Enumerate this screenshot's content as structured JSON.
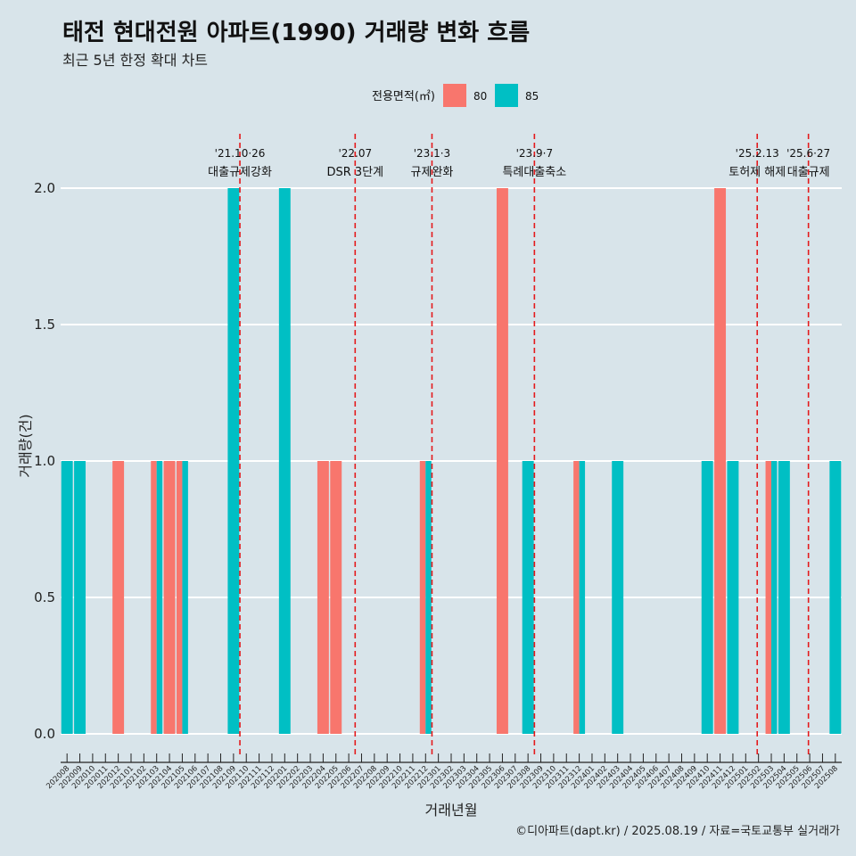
{
  "chart_data": {
    "type": "bar",
    "title": "태전 현대전원 아파트(1990) 거래량 변화 흐름",
    "subtitle": "최근 5년 한정 확대 차트",
    "xlabel": "거래년월",
    "ylabel": "거래량(건)",
    "ylim": [
      0,
      2.2
    ],
    "y_ticks": [
      "0.0",
      "0.5",
      "1.0",
      "1.5",
      "2.0"
    ],
    "grid": true,
    "legend": {
      "title": "전용면적(㎡)",
      "position": "top",
      "entries": [
        {
          "name": "80",
          "color": "#f8766d"
        },
        {
          "name": "85",
          "color": "#00bfc4"
        }
      ]
    },
    "categories": [
      "202008",
      "202009",
      "202010",
      "202011",
      "202012",
      "202101",
      "202102",
      "202103",
      "202104",
      "202105",
      "202106",
      "202107",
      "202108",
      "202109",
      "202110",
      "202111",
      "202112",
      "202201",
      "202202",
      "202203",
      "202204",
      "202205",
      "202206",
      "202207",
      "202208",
      "202209",
      "202210",
      "202211",
      "202212",
      "202301",
      "202302",
      "202303",
      "202304",
      "202305",
      "202306",
      "202307",
      "202308",
      "202309",
      "202310",
      "202311",
      "202312",
      "202401",
      "202402",
      "202403",
      "202404",
      "202405",
      "202406",
      "202407",
      "202408",
      "202409",
      "202410",
      "202411",
      "202412",
      "202501",
      "202502",
      "202503",
      "202504",
      "202505",
      "202506",
      "202507",
      "202508"
    ],
    "bars": [
      {
        "month": "202008",
        "area": "85",
        "value": 1,
        "pos": "full"
      },
      {
        "month": "202009",
        "area": "85",
        "value": 1,
        "pos": "full"
      },
      {
        "month": "202012",
        "area": "80",
        "value": 1,
        "pos": "full"
      },
      {
        "month": "202103",
        "area": "80",
        "value": 1,
        "pos": "left"
      },
      {
        "month": "202103",
        "area": "85",
        "value": 1,
        "pos": "right"
      },
      {
        "month": "202104",
        "area": "80",
        "value": 1,
        "pos": "full"
      },
      {
        "month": "202105",
        "area": "80",
        "value": 1,
        "pos": "left"
      },
      {
        "month": "202105",
        "area": "85",
        "value": 1,
        "pos": "right"
      },
      {
        "month": "202109",
        "area": "85",
        "value": 2,
        "pos": "full"
      },
      {
        "month": "202201",
        "area": "85",
        "value": 2,
        "pos": "full"
      },
      {
        "month": "202204",
        "area": "80",
        "value": 1,
        "pos": "full"
      },
      {
        "month": "202205",
        "area": "80",
        "value": 1,
        "pos": "full"
      },
      {
        "month": "202212",
        "area": "80",
        "value": 1,
        "pos": "left"
      },
      {
        "month": "202212",
        "area": "85",
        "value": 1,
        "pos": "right"
      },
      {
        "month": "202306",
        "area": "80",
        "value": 2,
        "pos": "full"
      },
      {
        "month": "202308",
        "area": "85",
        "value": 1,
        "pos": "full"
      },
      {
        "month": "202312",
        "area": "80",
        "value": 1,
        "pos": "left"
      },
      {
        "month": "202312",
        "area": "85",
        "value": 1,
        "pos": "right"
      },
      {
        "month": "202403",
        "area": "85",
        "value": 1,
        "pos": "full"
      },
      {
        "month": "202410",
        "area": "85",
        "value": 1,
        "pos": "full"
      },
      {
        "month": "202411",
        "area": "80",
        "value": 2,
        "pos": "full"
      },
      {
        "month": "202412",
        "area": "85",
        "value": 1,
        "pos": "full"
      },
      {
        "month": "202503",
        "area": "80",
        "value": 1,
        "pos": "left"
      },
      {
        "month": "202503",
        "area": "85",
        "value": 1,
        "pos": "right"
      },
      {
        "month": "202504",
        "area": "85",
        "value": 1,
        "pos": "full"
      },
      {
        "month": "202508",
        "area": "85",
        "value": 1,
        "pos": "full"
      }
    ],
    "annotations": [
      {
        "month": "202110",
        "offset": -0.5,
        "date": "'21.10·26",
        "text": "대출규제강화"
      },
      {
        "month": "202207",
        "offset": -0.5,
        "date": "'22.07",
        "text": "DSR 3단계"
      },
      {
        "month": "202301",
        "offset": -0.5,
        "date": "'23.1·3",
        "text": "규제완화"
      },
      {
        "month": "202309",
        "offset": -0.5,
        "date": "'23.9·7",
        "text": "특례대출축소"
      },
      {
        "month": "202502",
        "offset": -0.1,
        "date": "'25.2.13",
        "text": "토허제 해제"
      },
      {
        "month": "202506",
        "offset": -0.1,
        "date": "'25.6·27",
        "text": "대출규제"
      }
    ]
  },
  "footer": "©디아파트(dapt.kr) / 2025.08.19 / 자료=국토교통부 실거래가"
}
